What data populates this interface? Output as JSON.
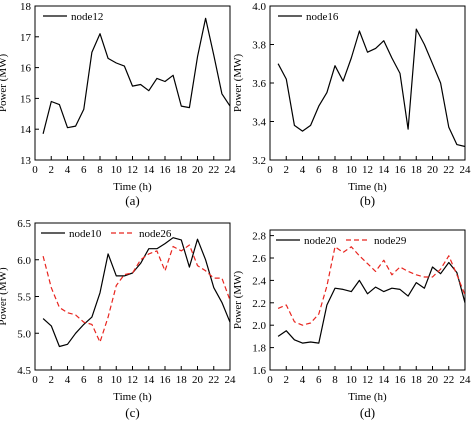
{
  "chart_data": [
    {
      "type": "line",
      "caption": "(a)",
      "xlabel": "Time (h)",
      "ylabel": "Power (MW)",
      "xlim": [
        0,
        24
      ],
      "ylim": [
        13,
        18
      ],
      "xticks": [
        0,
        2,
        4,
        6,
        8,
        10,
        12,
        14,
        16,
        18,
        20,
        22,
        24
      ],
      "yticks": [
        13,
        14,
        15,
        16,
        17,
        18
      ],
      "legend_position": "top-left",
      "grid": false,
      "x": [
        1,
        2,
        3,
        4,
        5,
        6,
        7,
        8,
        9,
        10,
        11,
        12,
        13,
        14,
        15,
        16,
        17,
        18,
        19,
        20,
        21,
        22,
        23,
        24
      ],
      "series": [
        {
          "name": "node12",
          "color": "#000000",
          "dashed": false,
          "values": [
            13.85,
            14.9,
            14.8,
            14.05,
            14.1,
            14.65,
            16.5,
            17.1,
            16.3,
            16.15,
            16.05,
            15.4,
            15.45,
            15.25,
            15.65,
            15.55,
            15.75,
            14.75,
            14.7,
            16.35,
            17.6,
            16.4,
            15.15,
            14.75
          ]
        }
      ]
    },
    {
      "type": "line",
      "caption": "(b)",
      "xlabel": "Time (h)",
      "ylabel": "Power (MW)",
      "xlim": [
        0,
        24
      ],
      "ylim": [
        3.2,
        4.0
      ],
      "xticks": [
        0,
        2,
        4,
        6,
        8,
        10,
        12,
        14,
        16,
        18,
        20,
        22,
        24
      ],
      "yticks": [
        3.2,
        3.4,
        3.6,
        3.8,
        4.0
      ],
      "legend_position": "top-left",
      "grid": false,
      "x": [
        1,
        2,
        3,
        4,
        5,
        6,
        7,
        8,
        9,
        10,
        11,
        12,
        13,
        14,
        15,
        16,
        17,
        18,
        19,
        20,
        21,
        22,
        23,
        24
      ],
      "series": [
        {
          "name": "node16",
          "color": "#000000",
          "dashed": false,
          "values": [
            3.7,
            3.62,
            3.38,
            3.35,
            3.38,
            3.48,
            3.55,
            3.69,
            3.61,
            3.73,
            3.87,
            3.76,
            3.78,
            3.82,
            3.73,
            3.65,
            3.36,
            3.88,
            3.8,
            3.7,
            3.6,
            3.37,
            3.28,
            3.27
          ]
        }
      ]
    },
    {
      "type": "line",
      "caption": "(c)",
      "xlabel": "Time (h)",
      "ylabel": "Power (MW)",
      "xlim": [
        0,
        24
      ],
      "ylim": [
        4.5,
        6.5
      ],
      "xticks": [
        0,
        2,
        4,
        6,
        8,
        10,
        12,
        14,
        16,
        18,
        20,
        22,
        24
      ],
      "yticks": [
        4.5,
        5.0,
        5.5,
        6.0,
        6.5
      ],
      "legend_position": "top",
      "grid": false,
      "x": [
        1,
        2,
        3,
        4,
        5,
        6,
        7,
        8,
        9,
        10,
        11,
        12,
        13,
        14,
        15,
        16,
        17,
        18,
        19,
        20,
        21,
        22,
        23,
        24
      ],
      "series": [
        {
          "name": "node10",
          "color": "#000000",
          "dashed": false,
          "values": [
            5.2,
            5.1,
            4.82,
            4.85,
            5.0,
            5.12,
            5.22,
            5.55,
            6.08,
            5.78,
            5.78,
            5.82,
            5.95,
            6.15,
            6.15,
            6.22,
            6.3,
            6.27,
            5.9,
            6.28,
            6.0,
            5.62,
            5.42,
            5.15
          ]
        },
        {
          "name": "node26",
          "color": "#e8251f",
          "dashed": true,
          "values": [
            6.05,
            5.62,
            5.35,
            5.28,
            5.25,
            5.15,
            5.12,
            4.88,
            5.22,
            5.65,
            5.8,
            5.82,
            6.0,
            6.08,
            6.12,
            5.85,
            6.18,
            6.12,
            6.2,
            5.92,
            5.85,
            5.75,
            5.75,
            5.45
          ]
        }
      ]
    },
    {
      "type": "line",
      "caption": "(d)",
      "xlabel": "Time (h)",
      "ylabel": "Power (MW)",
      "xlim": [
        0,
        24
      ],
      "ylim": [
        1.6,
        2.85
      ],
      "xticks": [
        0,
        2,
        4,
        6,
        8,
        10,
        12,
        14,
        16,
        18,
        20,
        22,
        24
      ],
      "yticks": [
        1.6,
        1.8,
        2.0,
        2.2,
        2.4,
        2.6,
        2.8
      ],
      "legend_position": "top",
      "grid": false,
      "x": [
        1,
        2,
        3,
        4,
        5,
        6,
        7,
        8,
        9,
        10,
        11,
        12,
        13,
        14,
        15,
        16,
        17,
        18,
        19,
        20,
        21,
        22,
        23,
        24
      ],
      "series": [
        {
          "name": "node20",
          "color": "#000000",
          "dashed": false,
          "values": [
            1.9,
            1.95,
            1.87,
            1.84,
            1.85,
            1.84,
            2.18,
            2.33,
            2.32,
            2.3,
            2.4,
            2.28,
            2.34,
            2.3,
            2.33,
            2.32,
            2.26,
            2.38,
            2.33,
            2.52,
            2.46,
            2.56,
            2.47,
            2.2
          ]
        },
        {
          "name": "node29",
          "color": "#e8251f",
          "dashed": true,
          "values": [
            2.15,
            2.18,
            2.03,
            2.0,
            2.02,
            2.1,
            2.35,
            2.7,
            2.65,
            2.7,
            2.62,
            2.55,
            2.48,
            2.58,
            2.45,
            2.52,
            2.48,
            2.45,
            2.43,
            2.43,
            2.5,
            2.62,
            2.45,
            2.27
          ]
        }
      ]
    }
  ]
}
